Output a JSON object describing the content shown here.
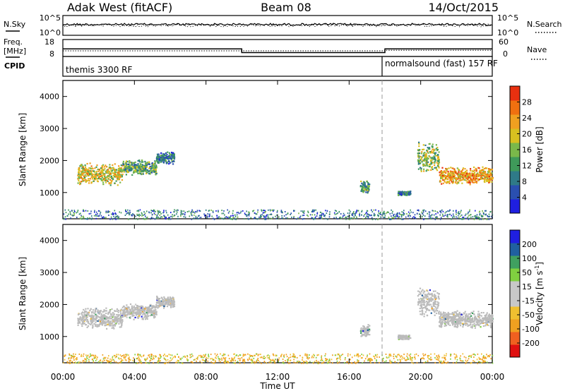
{
  "header": {
    "station": "Adak West (fitACF)",
    "beam": "Beam 08",
    "date": "14/Oct/2015"
  },
  "noise_panel": {
    "left_label": "N.Sky",
    "right_label": "N.Search",
    "left_ticks": [
      "10^5",
      "10^0"
    ],
    "right_ticks": [
      "10^5",
      "10^0"
    ]
  },
  "freq_panel": {
    "left_label_line1": "Freq.",
    "left_label_line2": "[MHz]",
    "right_label": "Nave",
    "left_ticks": [
      "18",
      "8"
    ],
    "right_ticks": [
      "60",
      "0"
    ]
  },
  "cpid_panel": {
    "label": "CPID",
    "segments": [
      {
        "name": "themis 3300 RF",
        "start_hour": 0
      },
      {
        "name": "normalsound (fast) 157 RF",
        "start_hour": 18
      }
    ]
  },
  "time_axis": {
    "title": "Time UT",
    "ticks": [
      "00:00",
      "04:00",
      "08:00",
      "12:00",
      "16:00",
      "20:00",
      "00:00"
    ]
  },
  "power_panel": {
    "ylabel": "Slant Range [km]",
    "yticks": [
      "1000",
      "2000",
      "3000",
      "4000"
    ],
    "colorbar_label": "Power [dB]",
    "colorbar_ticks": [
      "4",
      "8",
      "12",
      "16",
      "20",
      "24",
      "28"
    ]
  },
  "velocity_panel": {
    "ylabel": "Slant Range [km]",
    "yticks": [
      "1000",
      "2000",
      "3000",
      "4000"
    ],
    "colorbar_label": "Velocity [m s",
    "colorbar_label_sup": "-1",
    "colorbar_label_end": "]",
    "colorbar_ticks": [
      "200",
      "100",
      "50",
      "15",
      "-15",
      "-50",
      "-100",
      "-200"
    ]
  },
  "colors": {
    "power_scale": [
      "#1f1fe0",
      "#2a4fb0",
      "#2f7a88",
      "#3f9a5a",
      "#7ab84a",
      "#d8c020",
      "#f0a020",
      "#f07010",
      "#e83010"
    ],
    "velocity_scale": [
      "#e01010",
      "#f06020",
      "#f0a020",
      "#f0c030",
      "#c8c8c8",
      "#c8c8c8",
      "#80d040",
      "#40a060",
      "#2060a0",
      "#1f1fe0"
    ],
    "ground_scatter": "#bbbbbb"
  },
  "chart_data": {
    "type": "heatmap",
    "x_range_hours": [
      0,
      24
    ],
    "y_range_km": [
      180,
      4500
    ],
    "mode_change_hour": 18,
    "noise": {
      "sky_level": 0.55,
      "search_level": 0.5
    },
    "frequency_mhz": [
      {
        "start": 0,
        "end": 10,
        "value": 12.5
      },
      {
        "start": 10,
        "end": 18,
        "value": 10.3
      },
      {
        "start": 18,
        "end": 24,
        "value": 12.5
      }
    ],
    "nave": [
      {
        "start": 0,
        "end": 18,
        "value": 20
      },
      {
        "start": 18,
        "end": 24,
        "value": 22
      }
    ],
    "echo_regions": [
      {
        "t0": 0.8,
        "t1": 3.3,
        "r_center": 1600,
        "r_halfwidth": 350,
        "power_db": 20
      },
      {
        "t0": 3.3,
        "t1": 5.2,
        "r_center": 1800,
        "r_halfwidth": 250,
        "power_db": 13
      },
      {
        "t0": 5.2,
        "t1": 6.2,
        "r_center": 2100,
        "r_halfwidth": 200,
        "power_db": 9
      },
      {
        "t0": 16.6,
        "t1": 17.1,
        "r_center": 1200,
        "r_halfwidth": 200,
        "power_db": 10
      },
      {
        "t0": 18.7,
        "t1": 19.4,
        "r_center": 1000,
        "r_halfwidth": 80,
        "power_db": 8
      },
      {
        "t0": 19.8,
        "t1": 21.0,
        "r_center": 2100,
        "r_halfwidth": 500,
        "power_db": 14
      },
      {
        "t0": 21.0,
        "t1": 24.0,
        "r_center": 1550,
        "r_halfwidth": 280,
        "power_db": 22
      }
    ]
  }
}
